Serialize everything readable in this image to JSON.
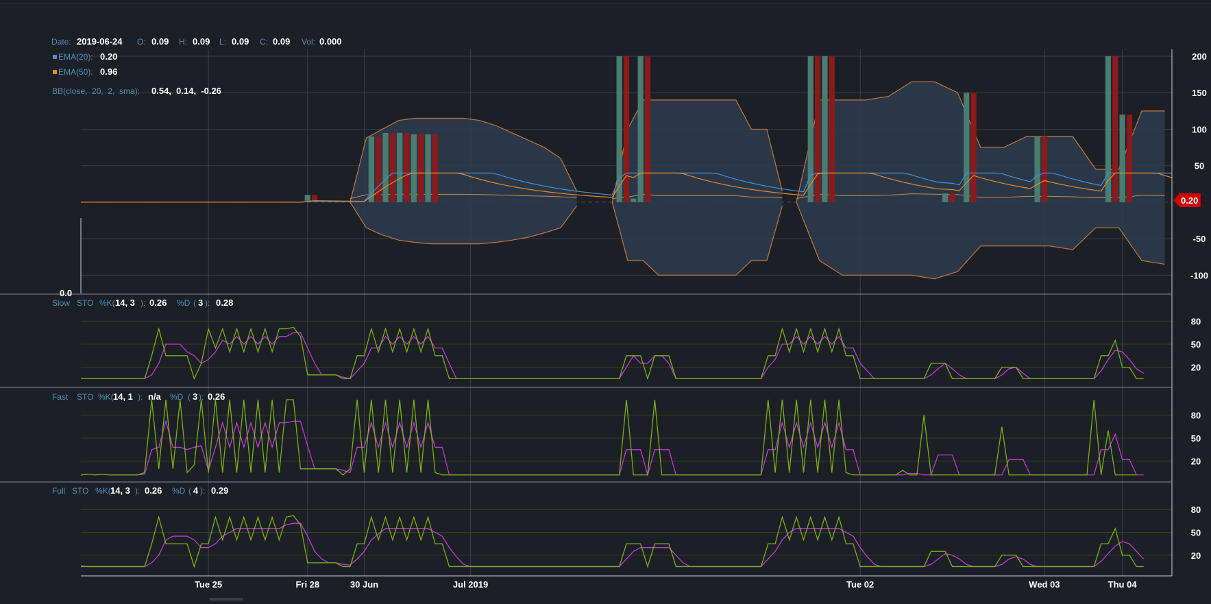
{
  "chart_data": {
    "type": "candlestick",
    "ohlc_header": {
      "date_label": "Date:",
      "date": "2019-06-24",
      "open_label": "O:",
      "open": "0.09",
      "high_label": "H:",
      "high": "0.09",
      "low_label": "L:",
      "low": "0.09",
      "close_label": "C:",
      "close": "0.09",
      "vol_label": "Vol:",
      "vol": "0.000"
    },
    "indicators": {
      "ema20": {
        "label": "EMA(20):",
        "value": "0.20",
        "color": "#4a8fd0"
      },
      "ema50": {
        "label": "EMA(50):",
        "value": "0.96",
        "color": "#f08a24"
      },
      "bb": {
        "label": "BB(close,  20,  2,  sma):",
        "value": "0.54,  0.14,  -0.26"
      }
    },
    "price_panel": {
      "y_ticks": [
        "200",
        "150",
        "100",
        "50",
        "-50",
        "-100"
      ],
      "y_tick_values": [
        200,
        150,
        100,
        50,
        -50,
        -100
      ],
      "ylim": [
        -125,
        200
      ],
      "last_price": "0.20",
      "volume_axis_label": "0.0"
    },
    "stochastics": [
      {
        "id": "slow",
        "name": "Slow",
        "sto": "STO",
        "k_label": "%K(",
        "k_params": "14, 3",
        "k_close": "):",
        "k_value": "0.26",
        "d_label": "%D",
        "d_open": "(",
        "d_params": "3",
        "d_close": "):",
        "d_value": "0.28",
        "k": [
          5,
          5,
          5,
          5,
          5,
          5,
          5,
          5,
          5,
          5,
          35,
          70,
          35,
          35,
          35,
          35,
          5,
          25,
          70,
          45,
          70,
          40,
          70,
          40,
          70,
          40,
          70,
          40,
          70,
          70,
          72,
          60,
          10,
          10,
          10,
          10,
          10,
          5,
          5,
          35,
          35,
          70,
          40,
          70,
          40,
          70,
          40,
          70,
          40,
          70,
          35,
          35,
          5,
          5,
          5,
          5,
          5,
          5,
          5,
          5,
          5,
          5,
          5,
          5,
          5,
          5,
          5,
          5,
          5,
          5,
          5,
          5,
          5,
          5,
          5,
          5,
          5,
          35,
          35,
          35,
          5,
          35,
          35,
          35,
          5,
          5,
          5,
          5,
          5,
          5,
          5,
          5,
          5,
          5,
          5,
          5,
          5,
          35,
          35,
          70,
          40,
          70,
          40,
          70,
          40,
          70,
          40,
          70,
          35,
          35,
          5,
          5,
          5,
          5,
          5,
          5,
          5,
          5,
          5,
          5,
          25,
          25,
          25,
          5,
          5,
          5,
          5,
          5,
          5,
          5,
          20,
          20,
          20,
          5,
          5,
          5,
          5,
          5,
          5,
          5,
          5,
          5,
          5,
          5,
          35,
          35,
          55,
          20,
          20,
          5,
          5
        ],
        "d": [
          5,
          5,
          5,
          5,
          5,
          5,
          5,
          5,
          5,
          5,
          10,
          25,
          50,
          50,
          50,
          40,
          35,
          25,
          30,
          40,
          55,
          50,
          60,
          50,
          60,
          50,
          60,
          50,
          60,
          60,
          65,
          65,
          45,
          25,
          10,
          10,
          10,
          7,
          5,
          15,
          25,
          45,
          45,
          60,
          50,
          60,
          50,
          60,
          50,
          60,
          45,
          45,
          25,
          5,
          5,
          5,
          5,
          5,
          5,
          5,
          5,
          5,
          5,
          5,
          5,
          5,
          5,
          5,
          5,
          5,
          5,
          5,
          5,
          5,
          5,
          5,
          5,
          20,
          35,
          25,
          25,
          35,
          35,
          25,
          5,
          5,
          5,
          5,
          5,
          5,
          5,
          5,
          5,
          5,
          5,
          5,
          5,
          20,
          30,
          50,
          50,
          60,
          50,
          60,
          50,
          60,
          50,
          60,
          45,
          45,
          25,
          15,
          5,
          5,
          5,
          5,
          5,
          5,
          5,
          5,
          10,
          18,
          25,
          18,
          10,
          5,
          5,
          5,
          5,
          5,
          10,
          18,
          20,
          12,
          5,
          5,
          5,
          5,
          5,
          5,
          5,
          5,
          5,
          5,
          15,
          30,
          42,
          40,
          30,
          18,
          12
        ],
        "ticks": [
          "80",
          "50",
          "20"
        ],
        "tick_values": [
          80,
          50,
          20
        ]
      },
      {
        "id": "fast",
        "name": "Fast",
        "sto": "STO",
        "k_label": "%K(",
        "k_params": "14, 1",
        "k_close": "):",
        "k_value": "n/a",
        "d_label": "%D",
        "d_open": "(",
        "d_params": "3",
        "d_close": "):",
        "d_value": "0.26",
        "k": [
          2,
          3,
          2,
          3,
          2,
          2,
          2,
          2,
          2,
          5,
          100,
          10,
          100,
          10,
          100,
          5,
          15,
          100,
          5,
          100,
          5,
          100,
          5,
          100,
          5,
          100,
          5,
          100,
          5,
          100,
          100,
          10,
          10,
          10,
          10,
          10,
          10,
          2,
          10,
          100,
          5,
          100,
          5,
          100,
          5,
          100,
          5,
          100,
          5,
          100,
          5,
          2,
          2,
          2,
          2,
          2,
          2,
          2,
          2,
          2,
          2,
          2,
          2,
          2,
          2,
          2,
          2,
          2,
          2,
          2,
          2,
          2,
          2,
          2,
          2,
          2,
          2,
          100,
          2,
          2,
          2,
          100,
          2,
          2,
          2,
          2,
          2,
          2,
          2,
          2,
          2,
          2,
          2,
          2,
          2,
          2,
          2,
          100,
          5,
          100,
          5,
          100,
          5,
          100,
          5,
          100,
          5,
          100,
          5,
          2,
          2,
          2,
          2,
          2,
          2,
          2,
          8,
          2,
          2,
          80,
          2,
          2,
          2,
          2,
          2,
          2,
          2,
          2,
          2,
          2,
          65,
          2,
          2,
          2,
          2,
          2,
          2,
          2,
          2,
          2,
          2,
          2,
          2,
          100,
          2,
          60,
          2,
          2,
          2,
          2
        ],
        "d": [
          2,
          3,
          2,
          3,
          2,
          2,
          2,
          2,
          2,
          3,
          35,
          38,
          72,
          38,
          38,
          35,
          38,
          40,
          8,
          38,
          70,
          38,
          70,
          38,
          70,
          38,
          70,
          38,
          70,
          70,
          72,
          72,
          40,
          10,
          10,
          10,
          10,
          8,
          5,
          38,
          38,
          70,
          38,
          70,
          38,
          70,
          38,
          70,
          38,
          70,
          38,
          38,
          2,
          2,
          2,
          2,
          2,
          2,
          2,
          2,
          2,
          2,
          2,
          2,
          2,
          2,
          2,
          2,
          2,
          2,
          2,
          2,
          2,
          2,
          2,
          2,
          2,
          35,
          35,
          35,
          2,
          35,
          35,
          35,
          2,
          2,
          2,
          2,
          2,
          2,
          2,
          2,
          2,
          2,
          2,
          2,
          2,
          35,
          35,
          70,
          38,
          70,
          38,
          70,
          38,
          70,
          38,
          70,
          35,
          35,
          2,
          2,
          2,
          2,
          2,
          2,
          2,
          4,
          4,
          2,
          2,
          28,
          28,
          28,
          2,
          2,
          2,
          2,
          2,
          2,
          2,
          22,
          22,
          22,
          2,
          2,
          2,
          2,
          2,
          2,
          2,
          2,
          2,
          2,
          35,
          35,
          55,
          22,
          22,
          2,
          2
        ],
        "ticks": [
          "80",
          "50",
          "20"
        ],
        "tick_values": [
          80,
          50,
          20
        ]
      },
      {
        "id": "full",
        "name": "Full",
        "sto": "STO",
        "k_label": "%K(",
        "k_params": "14, 3",
        "k_close": "):",
        "k_value": "0.26",
        "d_label": "%D",
        "d_open": "(",
        "d_params": "4",
        "d_close": "):",
        "d_value": "0.29",
        "k": [
          5,
          5,
          5,
          5,
          5,
          5,
          5,
          5,
          5,
          5,
          35,
          70,
          35,
          35,
          35,
          35,
          5,
          35,
          35,
          70,
          40,
          70,
          40,
          70,
          40,
          70,
          40,
          70,
          40,
          70,
          72,
          60,
          10,
          10,
          10,
          10,
          10,
          5,
          5,
          35,
          35,
          70,
          40,
          70,
          40,
          70,
          40,
          70,
          40,
          70,
          35,
          35,
          5,
          5,
          5,
          5,
          5,
          5,
          5,
          5,
          5,
          5,
          5,
          5,
          5,
          5,
          5,
          5,
          5,
          5,
          5,
          5,
          5,
          5,
          5,
          5,
          5,
          35,
          35,
          35,
          5,
          35,
          35,
          35,
          5,
          5,
          5,
          5,
          5,
          5,
          5,
          5,
          5,
          5,
          5,
          5,
          5,
          35,
          35,
          70,
          40,
          70,
          40,
          70,
          40,
          70,
          40,
          70,
          35,
          35,
          5,
          5,
          5,
          5,
          5,
          5,
          5,
          5,
          5,
          5,
          25,
          25,
          25,
          5,
          5,
          5,
          5,
          5,
          5,
          5,
          20,
          20,
          20,
          5,
          5,
          5,
          5,
          5,
          5,
          5,
          5,
          5,
          5,
          5,
          35,
          35,
          55,
          20,
          20,
          5,
          5
        ],
        "d": [
          6,
          5,
          5,
          5,
          5,
          5,
          5,
          5,
          5,
          5,
          10,
          20,
          40,
          45,
          45,
          45,
          40,
          30,
          30,
          35,
          45,
          50,
          55,
          55,
          55,
          55,
          55,
          55,
          55,
          60,
          62,
          62,
          45,
          25,
          15,
          10,
          10,
          8,
          7,
          15,
          25,
          40,
          48,
          55,
          55,
          55,
          55,
          55,
          55,
          55,
          50,
          45,
          30,
          18,
          8,
          5,
          5,
          5,
          5,
          5,
          5,
          5,
          5,
          5,
          5,
          5,
          5,
          5,
          5,
          5,
          5,
          5,
          5,
          5,
          5,
          5,
          5,
          15,
          25,
          30,
          30,
          30,
          30,
          30,
          20,
          10,
          5,
          5,
          5,
          5,
          5,
          5,
          5,
          5,
          5,
          5,
          5,
          15,
          25,
          40,
          50,
          55,
          55,
          55,
          55,
          55,
          55,
          55,
          50,
          45,
          30,
          18,
          8,
          5,
          5,
          5,
          5,
          5,
          5,
          5,
          8,
          15,
          22,
          20,
          15,
          8,
          5,
          5,
          5,
          5,
          8,
          15,
          18,
          15,
          8,
          5,
          5,
          5,
          5,
          5,
          5,
          5,
          5,
          5,
          12,
          22,
          32,
          38,
          35,
          25,
          15
        ],
        "ticks": [
          "80",
          "50",
          "20"
        ],
        "tick_values": [
          80,
          50,
          20
        ]
      }
    ],
    "x_ticks": [
      "Tue 25",
      "Fri 28",
      "30 Jun",
      "Jul 2019",
      "Tue 02",
      "Wed 03",
      "Thu 04"
    ],
    "x_tick_indices": [
      18,
      32,
      40,
      55,
      110,
      136,
      147
    ],
    "n_points": 155,
    "colors": {
      "bull": "#4a7d72",
      "bear": "#8b1a1a",
      "bb_fill": "#2d3c50",
      "bb_line": "#c8773a",
      "sto_k": "#7ab317",
      "sto_d": "#c43ad8",
      "grid": "#3a3e48",
      "sto_grid": "#34431c",
      "last_tag": "#d00000"
    },
    "bb_blocks": [
      {
        "from": 38,
        "to": 70,
        "upper": [
          0,
          88,
          100,
          112,
          115,
          115,
          115,
          115,
          112,
          105,
          95,
          85,
          75,
          60,
          15
        ],
        "lower": [
          0,
          -35,
          -45,
          -52,
          -55,
          -57,
          -57,
          -57,
          -57,
          -55,
          -52,
          -48,
          -42,
          -35,
          -5
        ]
      },
      {
        "from": 75,
        "to": 99,
        "upper": [
          0,
          100,
          140,
          140,
          140,
          140,
          140,
          140,
          140,
          100,
          100,
          15
        ],
        "lower": [
          0,
          -80,
          -80,
          -100,
          -100,
          -100,
          -100,
          -100,
          -100,
          -80,
          -80,
          -5
        ]
      },
      {
        "from": 101,
        "to": 153,
        "upper": [
          0,
          140,
          140,
          140,
          145,
          165,
          165,
          150,
          75,
          75,
          90,
          90,
          90,
          45,
          45,
          125,
          125
        ],
        "lower": [
          0,
          -80,
          -100,
          -100,
          -100,
          -100,
          -105,
          -95,
          -60,
          -60,
          -60,
          -60,
          -65,
          -35,
          -35,
          -80,
          -85
        ]
      }
    ],
    "candles": [
      {
        "i": 32,
        "o": 2,
        "c": 10
      },
      {
        "i": 33,
        "o": 10,
        "c": 2
      },
      {
        "i": 41,
        "o": 0,
        "c": 90
      },
      {
        "i": 42,
        "o": 90,
        "c": 0
      },
      {
        "i": 43,
        "o": 0,
        "c": 95
      },
      {
        "i": 44,
        "o": 95,
        "c": 0
      },
      {
        "i": 45,
        "o": 0,
        "c": 95
      },
      {
        "i": 46,
        "o": 95,
        "c": 0
      },
      {
        "i": 47,
        "o": 0,
        "c": 93
      },
      {
        "i": 48,
        "o": 93,
        "c": 0
      },
      {
        "i": 49,
        "o": 0,
        "c": 93
      },
      {
        "i": 50,
        "o": 93,
        "c": 0
      },
      {
        "i": 76,
        "o": 0,
        "c": 200
      },
      {
        "i": 77,
        "o": 200,
        "c": 0
      },
      {
        "i": 78,
        "o": 0,
        "c": 5
      },
      {
        "i": 79,
        "o": 0,
        "c": 200
      },
      {
        "i": 80,
        "o": 200,
        "c": 0
      },
      {
        "i": 103,
        "o": 0,
        "c": 200
      },
      {
        "i": 104,
        "o": 200,
        "c": 0
      },
      {
        "i": 105,
        "o": 0,
        "c": 200
      },
      {
        "i": 106,
        "o": 200,
        "c": 0
      },
      {
        "i": 122,
        "o": 0,
        "c": 12
      },
      {
        "i": 123,
        "o": 12,
        "c": 0
      },
      {
        "i": 125,
        "o": 0,
        "c": 150
      },
      {
        "i": 126,
        "o": 150,
        "c": 0
      },
      {
        "i": 135,
        "o": 0,
        "c": 90
      },
      {
        "i": 136,
        "o": 90,
        "c": 0
      },
      {
        "i": 145,
        "o": 0,
        "c": 200
      },
      {
        "i": 146,
        "o": 200,
        "c": 0
      },
      {
        "i": 147,
        "o": 0,
        "c": 120
      },
      {
        "i": 148,
        "o": 120,
        "c": 0
      }
    ]
  }
}
